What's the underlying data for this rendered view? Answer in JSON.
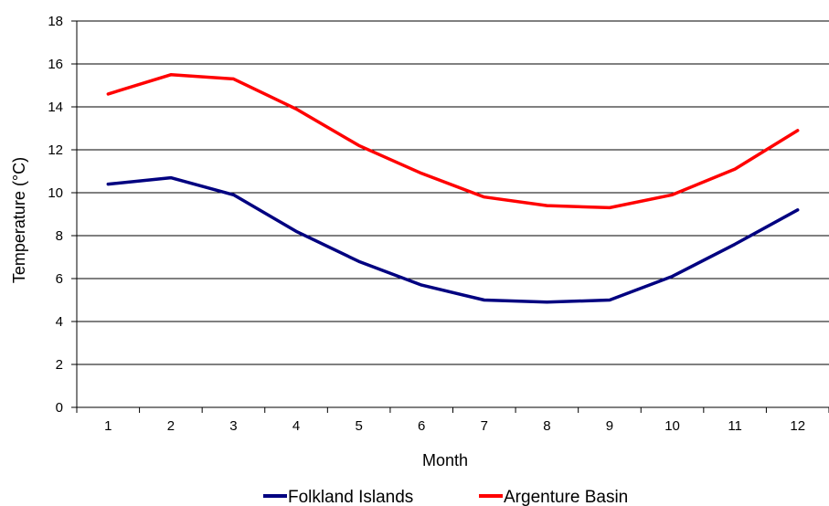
{
  "chart_data": {
    "type": "line",
    "xlabel": "Month",
    "ylabel": "Temperature (°C)",
    "categories": [
      "1",
      "2",
      "3",
      "4",
      "5",
      "6",
      "7",
      "8",
      "9",
      "10",
      "11",
      "12"
    ],
    "ylim": [
      0,
      18
    ],
    "yticks": [
      "0",
      "2",
      "4",
      "6",
      "8",
      "10",
      "12",
      "14",
      "16",
      "18"
    ],
    "grid": true,
    "legend_position": "bottom",
    "series": [
      {
        "name": "Folkland Islands",
        "color": "#000080",
        "values": [
          10.4,
          10.7,
          9.9,
          8.2,
          6.8,
          5.7,
          5.0,
          4.9,
          5.0,
          6.1,
          7.6,
          9.2
        ]
      },
      {
        "name": "Argenture Basin",
        "color": "#ff0000",
        "values": [
          14.6,
          15.5,
          15.3,
          13.9,
          12.2,
          10.9,
          9.8,
          9.4,
          9.3,
          9.9,
          11.1,
          12.9
        ]
      }
    ]
  }
}
